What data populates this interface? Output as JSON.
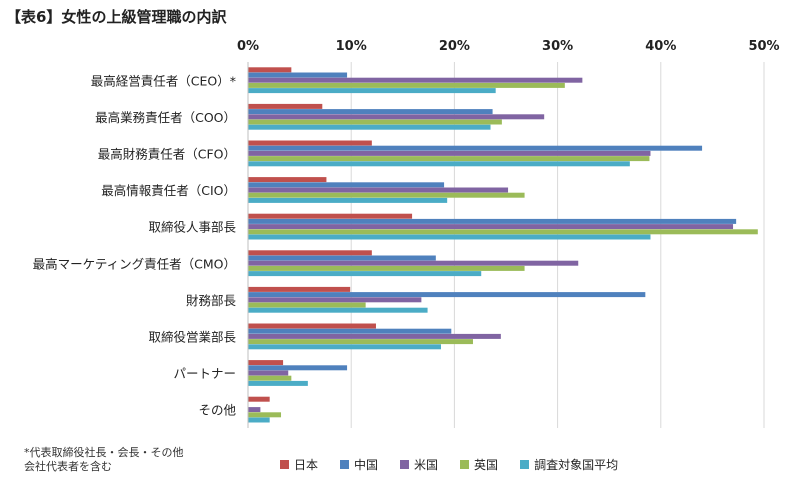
{
  "chart_data": {
    "type": "bar",
    "orientation": "horizontal",
    "title": "【表6】女性の上級管理職の内訳",
    "categories": [
      "最高経営責任者（CEO）*",
      "最高業務責任者（COO）",
      "最高財務責任者（CFO）",
      "最高情報責任者（CIO）",
      "取締役人事部長",
      "最高マーケティング責任者（CMO）",
      "財務部長",
      "取締役営業部長",
      "パートナー",
      "その他"
    ],
    "series": [
      {
        "name": "日本",
        "color": "#c0504d",
        "values": [
          4.2,
          7.2,
          12.0,
          7.6,
          15.9,
          12.0,
          9.9,
          12.4,
          3.4,
          2.1
        ]
      },
      {
        "name": "中国",
        "color": "#4f81bd",
        "values": [
          9.6,
          23.7,
          44.0,
          19.0,
          47.3,
          18.2,
          38.5,
          19.7,
          9.6,
          0.0
        ]
      },
      {
        "name": "米国",
        "color": "#8064a2",
        "values": [
          32.4,
          28.7,
          39.0,
          25.2,
          47.0,
          32.0,
          16.8,
          24.5,
          3.9,
          1.2
        ]
      },
      {
        "name": "英国",
        "color": "#9bbb59",
        "values": [
          30.7,
          24.6,
          38.9,
          26.8,
          49.4,
          26.8,
          11.4,
          21.8,
          4.2,
          3.2
        ]
      },
      {
        "name": "調査対象国平均",
        "color": "#4bacc6",
        "values": [
          24.0,
          23.5,
          37.0,
          19.3,
          39.0,
          22.6,
          17.4,
          18.7,
          5.8,
          2.1
        ]
      }
    ],
    "xlim": [
      0,
      50
    ],
    "xticks": [
      "0%",
      "10%",
      "20%",
      "30%",
      "40%",
      "50%"
    ],
    "xaxis_position": "top",
    "grid": true,
    "legend_position": "bottom",
    "footnote": [
      "*代表取締役社長・会長・その他",
      "会社代表者を含む"
    ]
  }
}
